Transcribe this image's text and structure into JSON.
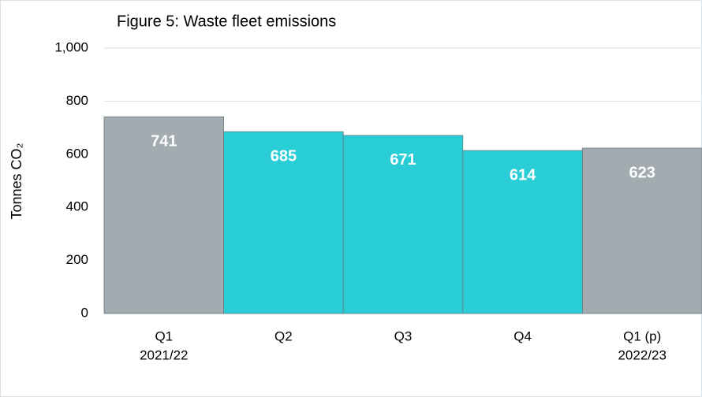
{
  "chart_data": {
    "type": "bar",
    "title": "Figure 5: Waste fleet emissions",
    "y_label": "Tonnes CO₂",
    "categories": [
      [
        "Q1",
        "2021/22"
      ],
      [
        "Q2"
      ],
      [
        "Q3"
      ],
      [
        "Q4"
      ],
      [
        "Q1 (p)",
        "2022/23"
      ]
    ],
    "values": [
      741,
      685,
      671,
      614,
      623
    ],
    "colors": [
      "#a2abb0",
      "#29cdd6",
      "#29cdd6",
      "#29cdd6",
      "#a2abb0"
    ],
    "ylim": [
      0,
      1000
    ],
    "yticks": [
      0,
      200,
      400,
      600,
      800,
      {
        "value": 1000,
        "label": "1,000"
      }
    ],
    "grid": true
  }
}
